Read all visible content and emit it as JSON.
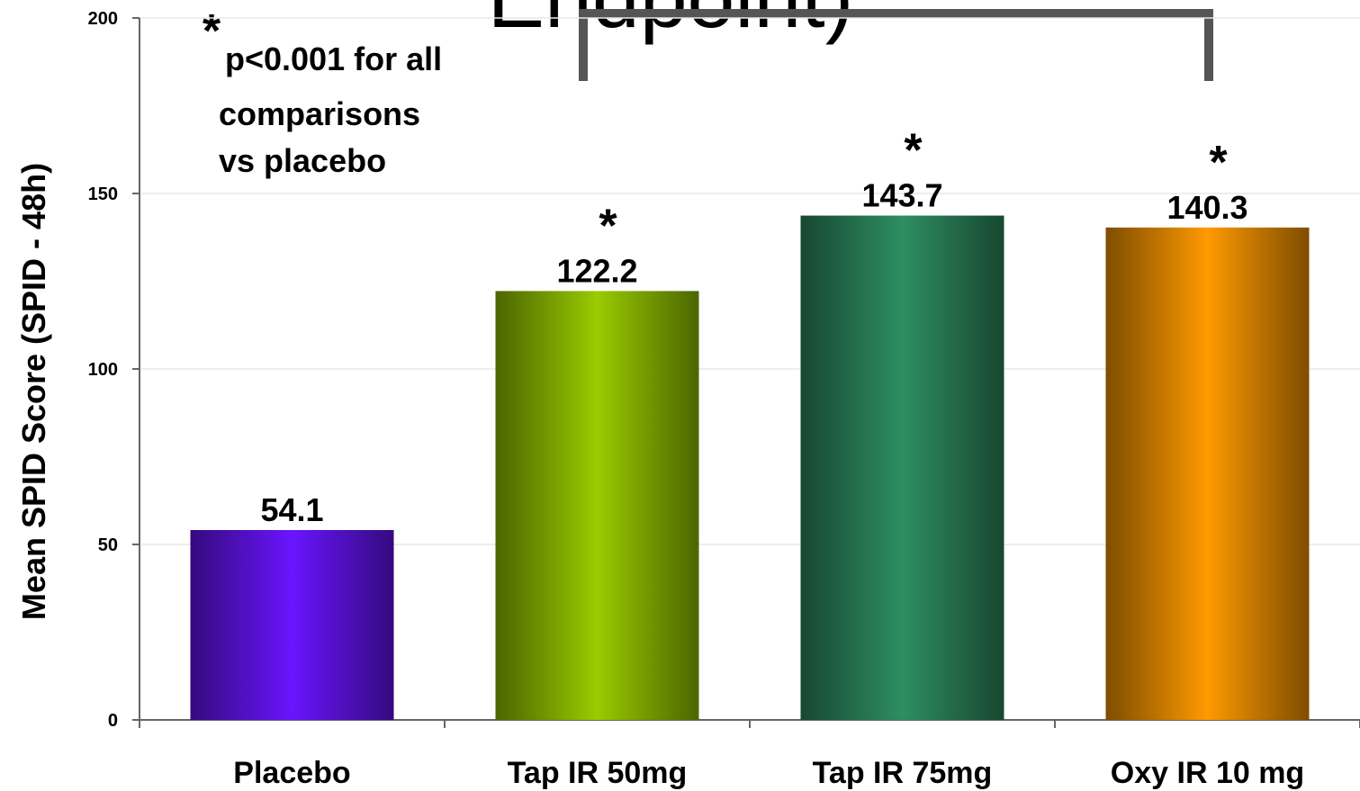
{
  "chart_data": {
    "type": "bar",
    "title": "Endpoint)",
    "y_label": "Mean SPID Score (SPID - 48h)",
    "categories": [
      "Placebo",
      "Tap IR 50mg",
      "Tap IR 75mg",
      "Oxy IR 10 mg"
    ],
    "values": [
      54.1,
      122.2,
      143.7,
      140.3
    ],
    "colors": [
      "#6a14ff",
      "#99cc00",
      "#2e8f62",
      "#ff9a00"
    ],
    "significance_marker": "*",
    "significant": [
      false,
      true,
      true,
      true
    ],
    "footnote": [
      "p<0.001 for all",
      "comparisons",
      "vs placebo"
    ],
    "ylim": [
      0,
      200
    ],
    "yticks": [
      0,
      50,
      100,
      150,
      200
    ],
    "grid": true
  }
}
